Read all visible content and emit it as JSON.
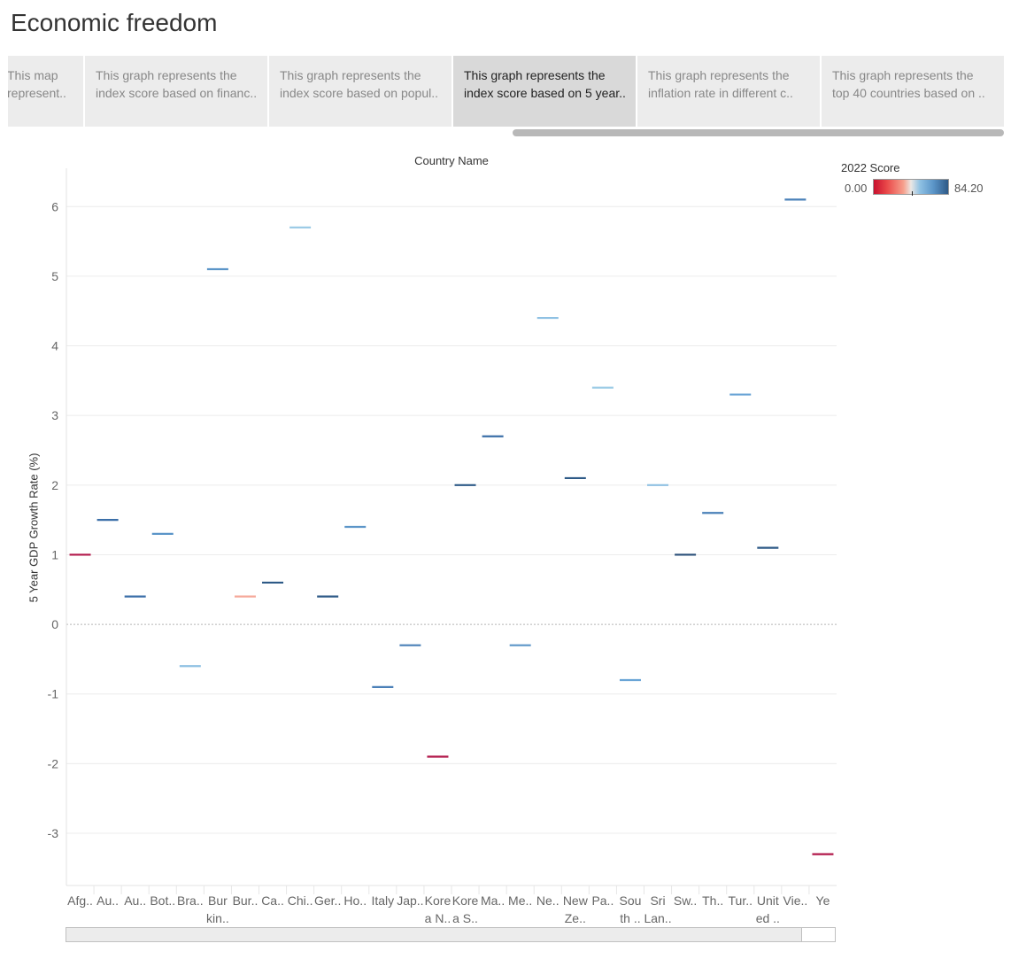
{
  "dashboard": {
    "title": "Economic freedom"
  },
  "story_points": [
    {
      "lines": [
        "This map",
        "represent.."
      ],
      "active": false
    },
    {
      "lines": [
        "This graph represents the",
        "index score based on financ.."
      ],
      "active": false
    },
    {
      "lines": [
        "This graph represents the",
        "index score based on popul.."
      ],
      "active": false
    },
    {
      "lines": [
        "This graph represents the",
        "index score based on 5 year.."
      ],
      "active": true
    },
    {
      "lines": [
        "This graph represents the",
        "inflation rate in different c.."
      ],
      "active": false
    },
    {
      "lines": [
        "This graph represents the",
        "top 40 countries based  on .."
      ],
      "active": false
    }
  ],
  "legend": {
    "title": "2022 Score",
    "min_label": "0.00",
    "max_label": "84.20"
  },
  "chart_data": {
    "type": "scatter",
    "mark": "horizontal dash",
    "column_header": "Country Name",
    "ylabel": "5 Year GDP Growth Rate (%)",
    "yticks": [
      -3,
      -2,
      -1,
      0,
      1,
      2,
      3,
      4,
      5,
      6
    ],
    "ylim": [
      -3.75,
      6.55
    ],
    "grid": true,
    "color_scale": {
      "field": "2022 Score",
      "min": 0.0,
      "max": 84.2,
      "colors": [
        "#c8102e",
        "#ea4a4a",
        "#f6a08d",
        "#8fc1e3",
        "#5b95c8",
        "#2e5a87"
      ]
    },
    "categories": [
      {
        "label": [
          "Afg.."
        ],
        "value": 1.0,
        "color": "#b2184a"
      },
      {
        "label": [
          "Au.."
        ],
        "value": 1.5,
        "color": "#3b6fa8"
      },
      {
        "label": [
          "Au.."
        ],
        "value": 0.4,
        "color": "#3b6fa8"
      },
      {
        "label": [
          "Bot.."
        ],
        "value": 1.3,
        "color": "#5b95c8"
      },
      {
        "label": [
          "Bra.."
        ],
        "value": -0.6,
        "color": "#8fc1e3"
      },
      {
        "label": [
          "Bur",
          "kin.."
        ],
        "value": 5.1,
        "color": "#5b95c8"
      },
      {
        "label": [
          "Bur.."
        ],
        "value": 0.4,
        "color": "#f6a89a"
      },
      {
        "label": [
          "Ca.."
        ],
        "value": 0.6,
        "color": "#2e5a87"
      },
      {
        "label": [
          "Chi.."
        ],
        "value": 5.7,
        "color": "#9ccbe6"
      },
      {
        "label": [
          "Ger.."
        ],
        "value": 0.4,
        "color": "#2e5a87"
      },
      {
        "label": [
          "Ho.."
        ],
        "value": 1.4,
        "color": "#5b95c8"
      },
      {
        "label": [
          "Italy"
        ],
        "value": -0.9,
        "color": "#4a80b8"
      },
      {
        "label": [
          "Jap.."
        ],
        "value": -0.3,
        "color": "#4a80b8"
      },
      {
        "label": [
          "Kore",
          "a N.."
        ],
        "value": -1.9,
        "color": "#b2184a"
      },
      {
        "label": [
          "Kore",
          "a S.."
        ],
        "value": 2.0,
        "color": "#2e5a87"
      },
      {
        "label": [
          "Ma.."
        ],
        "value": 2.7,
        "color": "#3b6fa8"
      },
      {
        "label": [
          "Me.."
        ],
        "value": -0.3,
        "color": "#5b95c8"
      },
      {
        "label": [
          "Ne.."
        ],
        "value": 4.4,
        "color": "#8fc1e3"
      },
      {
        "label": [
          "New",
          "Ze.."
        ],
        "value": 2.1,
        "color": "#2e5a87"
      },
      {
        "label": [
          "Pa.."
        ],
        "value": 3.4,
        "color": "#9ccbe6"
      },
      {
        "label": [
          "Sou",
          "th .."
        ],
        "value": -0.8,
        "color": "#6aa5d6"
      },
      {
        "label": [
          "Sri",
          "Lan.."
        ],
        "value": 2.0,
        "color": "#8fc1e3"
      },
      {
        "label": [
          "Sw.."
        ],
        "value": 1.0,
        "color": "#2a4f79"
      },
      {
        "label": [
          "Th.."
        ],
        "value": 1.6,
        "color": "#4a80b8"
      },
      {
        "label": [
          "Tur.."
        ],
        "value": 3.3,
        "color": "#6aa5d6"
      },
      {
        "label": [
          "Unit",
          "ed .."
        ],
        "value": 1.1,
        "color": "#2e5a87"
      },
      {
        "label": [
          "Vie.."
        ],
        "value": 6.1,
        "color": "#4a80b8"
      },
      {
        "label": [
          "Ye"
        ],
        "value": -3.3,
        "color": "#b2184a"
      }
    ]
  }
}
